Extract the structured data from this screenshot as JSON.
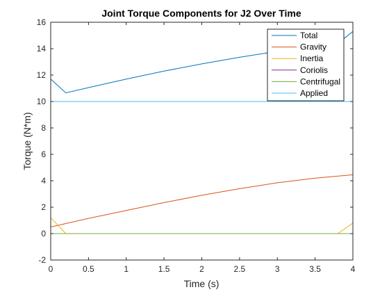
{
  "chart_data": {
    "type": "line",
    "title": "Joint Torque Components for J2 Over Time",
    "xlabel": "Time (s)",
    "ylabel": "Torque (N*m)",
    "xlim": [
      0,
      4
    ],
    "ylim": [
      -2,
      16
    ],
    "xticks": [
      "0",
      "0.5",
      "1",
      "1.5",
      "2",
      "2.5",
      "3",
      "3.5",
      "4"
    ],
    "xtick_values": [
      0,
      0.5,
      1,
      1.5,
      2,
      2.5,
      3,
      3.5,
      4
    ],
    "yticks": [
      "-2",
      "0",
      "2",
      "4",
      "6",
      "8",
      "10",
      "12",
      "14",
      "16"
    ],
    "ytick_values": [
      -2,
      0,
      2,
      4,
      6,
      8,
      10,
      12,
      14,
      16
    ],
    "grid": false,
    "legend_position": "top-right",
    "series": [
      {
        "name": "Total",
        "color": "#0072BD",
        "x": [
          0,
          0.2,
          0.5,
          1,
          1.5,
          2,
          2.5,
          3,
          3.5,
          3.8,
          4
        ],
        "y": [
          11.7,
          10.65,
          11.05,
          11.7,
          12.3,
          12.85,
          13.35,
          13.8,
          14.2,
          14.4,
          15.3
        ]
      },
      {
        "name": "Gravity",
        "color": "#D95319",
        "x": [
          0,
          0.5,
          1,
          1.5,
          2,
          2.5,
          3,
          3.5,
          4
        ],
        "y": [
          0.5,
          1.15,
          1.75,
          2.35,
          2.9,
          3.4,
          3.85,
          4.2,
          4.45
        ]
      },
      {
        "name": "Inertia",
        "color": "#EDB120",
        "x": [
          0,
          0.2,
          3.8,
          4
        ],
        "y": [
          1.2,
          0,
          0,
          0.8
        ]
      },
      {
        "name": "Coriolis",
        "color": "#7E2F8E",
        "x": [
          0,
          4
        ],
        "y": [
          0,
          0
        ]
      },
      {
        "name": "Centrifugal",
        "color": "#77AC30",
        "x": [
          0,
          4
        ],
        "y": [
          0,
          0
        ]
      },
      {
        "name": "Applied",
        "color": "#4DBEEE",
        "x": [
          0,
          4
        ],
        "y": [
          10,
          10
        ]
      }
    ]
  }
}
